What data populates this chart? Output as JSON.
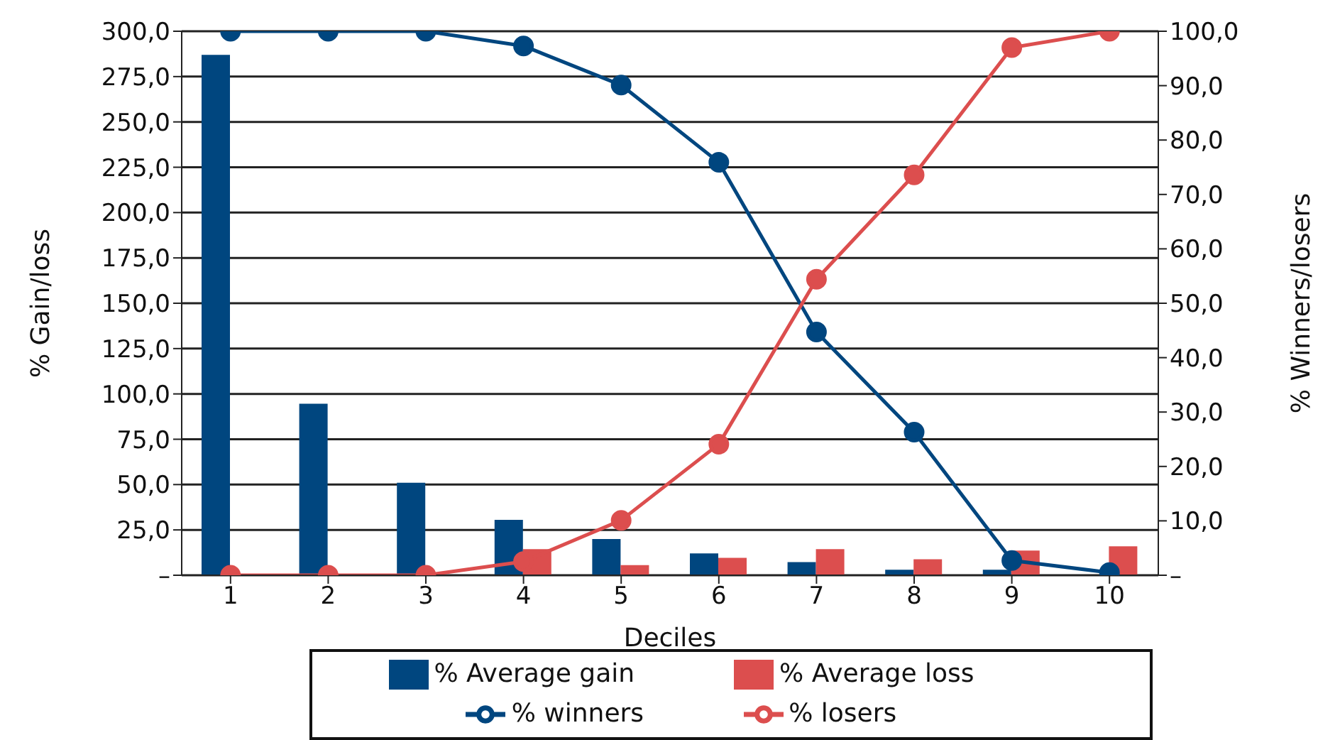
{
  "chart_data": {
    "type": "bar",
    "categories": [
      "1",
      "2",
      "3",
      "4",
      "5",
      "6",
      "7",
      "8",
      "9",
      "10"
    ],
    "xlabel": "Deciles",
    "ylabel": "% Gain/loss",
    "y2label": "% Winners/losers",
    "series": [
      {
        "name": "% Average gain",
        "color": "#00467f",
        "values": [
          287,
          94.6,
          51,
          30.5,
          20,
          12,
          7.2,
          3,
          3,
          null
        ]
      },
      {
        "name": "% Average loss",
        "color": "#dc4e4e",
        "values": [
          null,
          null,
          null,
          14.4,
          5.6,
          9.6,
          14.4,
          8.8,
          13.6,
          16
        ]
      },
      {
        "name": "% winners",
        "type": "line",
        "axis": "y2",
        "color": "#00467f",
        "values": [
          100,
          100,
          100,
          97.3,
          90.1,
          75.9,
          44.7,
          26.3,
          2.7,
          0.5
        ]
      },
      {
        "name": "% losers",
        "type": "line",
        "axis": "y2",
        "color": "#dc4e4e",
        "values": [
          0,
          0,
          0,
          2.5,
          10.1,
          24.1,
          54.4,
          73.6,
          97,
          100
        ]
      }
    ],
    "ylim": [
      0,
      300
    ],
    "yticks": [
      {
        "value": 0,
        "label": "–"
      },
      {
        "value": 25,
        "label": "25,0"
      },
      {
        "value": 50,
        "label": "50,0"
      },
      {
        "value": 75,
        "label": "75,0"
      },
      {
        "value": 100,
        "label": "100,0"
      },
      {
        "value": 125,
        "label": "125,0"
      },
      {
        "value": 150,
        "label": "150,0"
      },
      {
        "value": 175,
        "label": "175,0"
      },
      {
        "value": 200,
        "label": "200,0"
      },
      {
        "value": 225,
        "label": "225,0"
      },
      {
        "value": 250,
        "label": "250,0"
      },
      {
        "value": 275,
        "label": "275,0"
      },
      {
        "value": 300,
        "label": "300,0"
      }
    ],
    "y2lim": [
      0,
      100
    ],
    "y2ticks": [
      {
        "value": 0,
        "label": "–"
      },
      {
        "value": 10,
        "label": "10,0"
      },
      {
        "value": 20,
        "label": "20,0"
      },
      {
        "value": 30,
        "label": "30,0"
      },
      {
        "value": 40,
        "label": "40,0"
      },
      {
        "value": 50,
        "label": "50,0"
      },
      {
        "value": 60,
        "label": "60,0"
      },
      {
        "value": 70,
        "label": "70,0"
      },
      {
        "value": 80,
        "label": "80,0"
      },
      {
        "value": 90,
        "label": "90,0"
      },
      {
        "value": 100,
        "label": "100,0"
      }
    ],
    "grid": "y",
    "legend": "bottom",
    "marker": "circle",
    "line_style": "solid"
  }
}
